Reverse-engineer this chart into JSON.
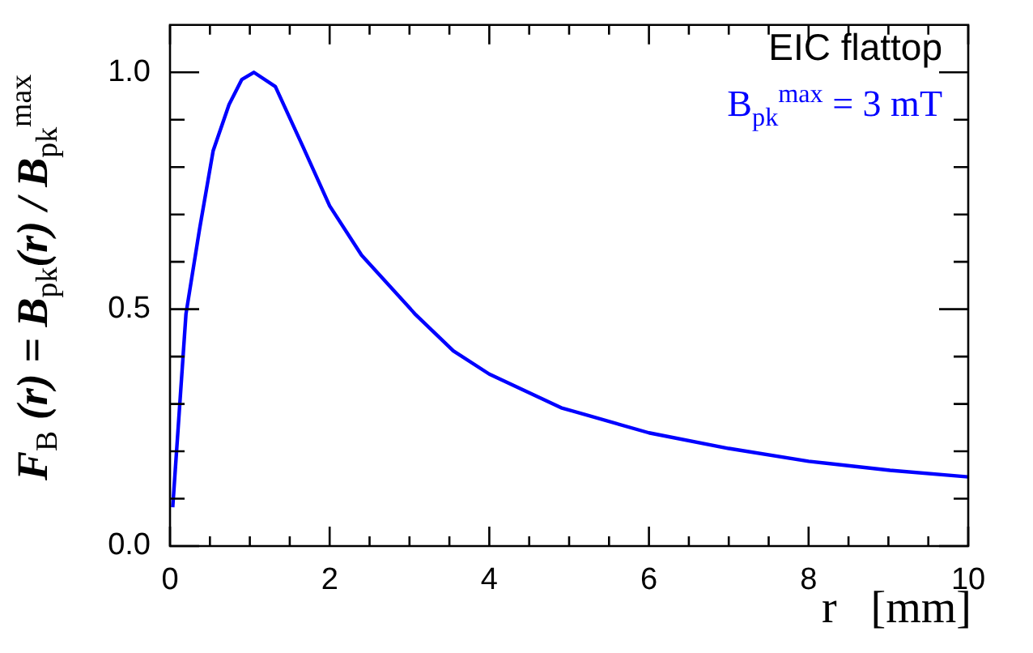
{
  "chart_data": {
    "type": "line",
    "xlabel": "r   [mm]",
    "ylabel": "F$_{B}$ (r) = B$_{pk}$(r) / B$_{pk}$$^{max}$",
    "annotations": [
      "EIC flattop"
    ],
    "series": [
      {
        "name": "B$_{pk}$$^{max}$ = 3 mT",
        "color": "#0000ff",
        "x": [
          0.034,
          0.2,
          0.37,
          0.54,
          0.74,
          0.9,
          1.05,
          1.32,
          1.66,
          2.0,
          2.4,
          3.08,
          3.55,
          4.0,
          4.9,
          6.0,
          7.0,
          8.0,
          9.02,
          10.0
        ],
        "values": [
          0.082,
          0.49,
          0.669,
          0.834,
          0.932,
          0.985,
          1.0,
          0.97,
          0.845,
          0.718,
          0.614,
          0.488,
          0.412,
          0.363,
          0.292,
          0.239,
          0.206,
          0.179,
          0.16,
          0.146
        ]
      }
    ],
    "xlim": [
      0,
      10
    ],
    "ylim": [
      0,
      1.1
    ],
    "xticks": [
      0,
      {
        "value": 0.5,
        "label": null
      },
      {
        "value": 1,
        "label": null
      },
      {
        "value": 1.5,
        "label": null
      },
      2,
      {
        "value": 2.5,
        "label": null
      },
      {
        "value": 3,
        "label": null
      },
      {
        "value": 3.5,
        "label": null
      },
      4,
      {
        "value": 4.5,
        "label": null
      },
      {
        "value": 5,
        "label": null
      },
      {
        "value": 5.5,
        "label": null
      },
      6,
      {
        "value": 6.5,
        "label": null
      },
      {
        "value": 7,
        "label": null
      },
      {
        "value": 7.5,
        "label": null
      },
      8,
      {
        "value": 8.5,
        "label": null
      },
      {
        "value": 9,
        "label": null
      },
      {
        "value": 9.5,
        "label": null
      },
      10
    ],
    "yticks": [
      {
        "value": 0,
        "label": "0.0"
      },
      {
        "value": 0.1,
        "label": null
      },
      {
        "value": 0.2,
        "label": null
      },
      {
        "value": 0.3,
        "label": null
      },
      {
        "value": 0.4,
        "label": null
      },
      {
        "value": 0.5,
        "label": "0.5"
      },
      {
        "value": 0.6,
        "label": null
      },
      {
        "value": 0.7,
        "label": null
      },
      {
        "value": 0.8,
        "label": null
      },
      {
        "value": 0.9,
        "label": null
      },
      {
        "value": 1,
        "label": "1.0"
      }
    ],
    "grid": false,
    "legend": "top right",
    "marker": "none",
    "line_style": "solid"
  }
}
